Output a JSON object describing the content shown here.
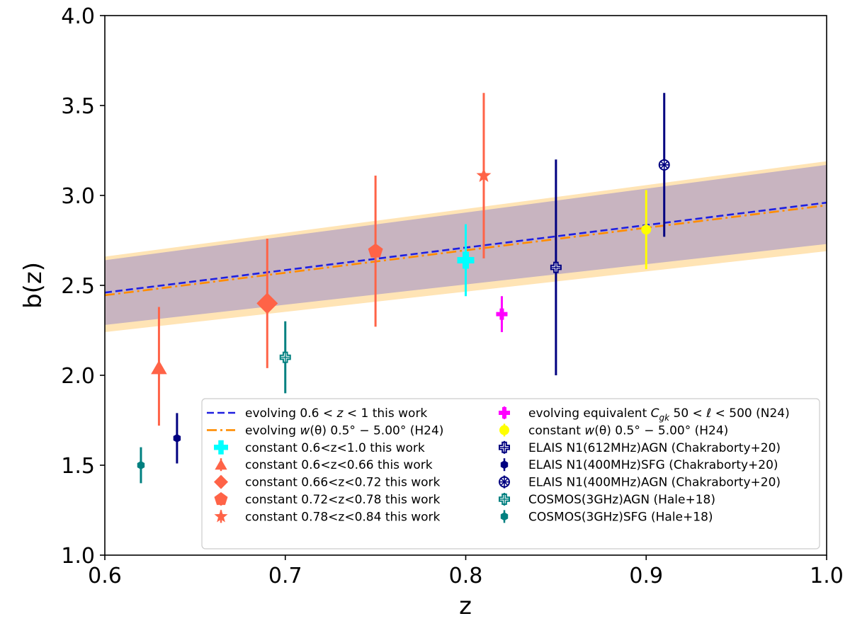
{
  "chart_data": {
    "type": "scatter",
    "xlabel": "z",
    "ylabel": "b(z)",
    "xlim": [
      0.6,
      1.0
    ],
    "ylim": [
      1.0,
      4.0
    ],
    "xticks": [
      "0.6",
      "0.7",
      "0.8",
      "0.9",
      "1.0"
    ],
    "yticks": [
      "1.0",
      "1.5",
      "2.0",
      "2.5",
      "3.0",
      "3.5",
      "4.0"
    ],
    "grid": false,
    "legend_position": "lower-right",
    "bands": [
      {
        "color": "#ffe4b5",
        "lower": [
          2.24,
          2.69
        ],
        "upper": [
          2.66,
          3.19
        ]
      },
      {
        "color": "#c8b4c0",
        "lower": [
          2.28,
          2.73
        ],
        "upper": [
          2.64,
          3.17
        ]
      }
    ],
    "lines": [
      {
        "legend": {
          "pre": "evolving ",
          "base": "0.6 < ",
          "ital": "z",
          "post": " < 1 this work"
        },
        "color": "#1f1fe0",
        "style": "dashed",
        "x": [
          0.6,
          1.0
        ],
        "y": [
          2.46,
          2.96
        ]
      },
      {
        "legend": {
          "pre": "evolving ",
          "ital": "w",
          "post": "(θ) 0.5° − 5.00° (H24)"
        },
        "color": "#ff8c00",
        "style": "dashdot",
        "x": [
          0.6,
          1.0
        ],
        "y": [
          2.445,
          2.945
        ]
      }
    ],
    "series": [
      {
        "legend": "constant 0.6<z<1.0 this work",
        "marker": "plus",
        "color": "#00ffff",
        "x": 0.8,
        "y": 2.64,
        "yerr_lo": 2.44,
        "yerr_hi": 2.84,
        "size": 12
      },
      {
        "legend": "constant 0.6<z<0.66 this work",
        "marker": "triangle",
        "color": "#ff6347",
        "x": 0.63,
        "y": 2.04,
        "yerr_lo": 1.72,
        "yerr_hi": 2.38,
        "size": 13
      },
      {
        "legend": "constant 0.66<z<0.72 this work",
        "marker": "diamond",
        "color": "#ff6347",
        "x": 0.69,
        "y": 2.4,
        "yerr_lo": 2.04,
        "yerr_hi": 2.76,
        "size": 15
      },
      {
        "legend": "constant 0.72<z<0.78 this work",
        "marker": "pentagon",
        "color": "#ff6347",
        "x": 0.75,
        "y": 2.69,
        "yerr_lo": 2.27,
        "yerr_hi": 3.11,
        "size": 11
      },
      {
        "legend": "constant 0.78<z<0.84 this work",
        "marker": "star",
        "color": "#ff6347",
        "x": 0.81,
        "y": 3.11,
        "yerr_lo": 2.65,
        "yerr_hi": 3.57,
        "size": 11
      },
      {
        "legend": {
          "pre": "evolving equivalent ",
          "ital": "C",
          "sub": "gk",
          "post": " 50 < ℓ < 500 (N24)"
        },
        "marker": "plus",
        "color": "#ff00ff",
        "x": 0.82,
        "y": 2.34,
        "yerr_lo": 2.24,
        "yerr_hi": 2.44,
        "size": 8
      },
      {
        "legend": {
          "pre": "constant ",
          "ital": "w",
          "post": "(θ) 0.5° − 5.00° (H24)"
        },
        "marker": "circle",
        "color": "#ffff00",
        "x": 0.9,
        "y": 2.81,
        "yerr_lo": 2.59,
        "yerr_hi": 3.03,
        "size": 7
      },
      {
        "legend": "ELAIS N1(612MHz)AGN (Chakraborty+20)",
        "marker": "plus-open",
        "color": "#000080",
        "x": 0.85,
        "y": 2.6,
        "yerr_lo": 2.0,
        "yerr_hi": 3.2,
        "size": 7
      },
      {
        "legend": "ELAIS N1(400MHz)SFG (Chakraborty+20)",
        "marker": "hexagon",
        "color": "#000080",
        "x": 0.64,
        "y": 1.65,
        "yerr_lo": 1.51,
        "yerr_hi": 1.79,
        "size": 6
      },
      {
        "legend": "ELAIS N1(400MHz)AGN (Chakraborty+20)",
        "marker": "circle-cross",
        "color": "#000080",
        "x": 0.91,
        "y": 3.17,
        "yerr_lo": 2.77,
        "yerr_hi": 3.57,
        "size": 7
      },
      {
        "legend": "COSMOS(3GHz)AGN (Hale+18)",
        "marker": "plus-open",
        "color": "#008080",
        "x": 0.7,
        "y": 2.1,
        "yerr_lo": 1.9,
        "yerr_hi": 2.3,
        "size": 7
      },
      {
        "legend": "COSMOS(3GHz)SFG (Hale+18)",
        "marker": "hexagon",
        "color": "#008080",
        "x": 0.62,
        "y": 1.5,
        "yerr_lo": 1.4,
        "yerr_hi": 1.6,
        "size": 6
      }
    ]
  }
}
